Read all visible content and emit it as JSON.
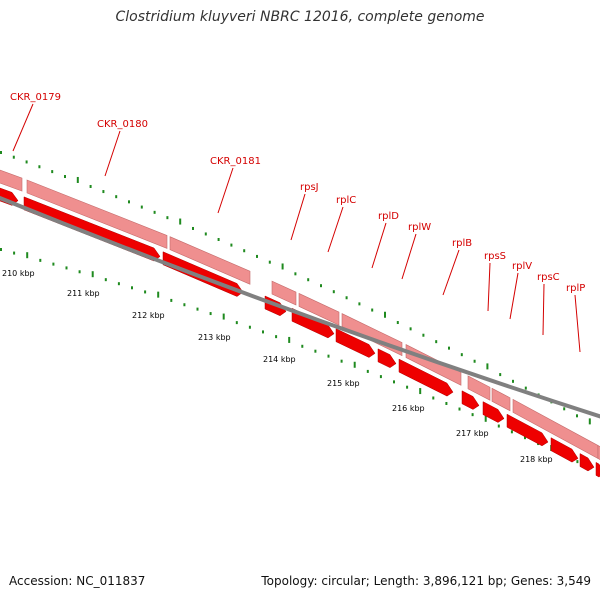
{
  "title": "Clostridium kluyveri NBRC 12016, complete genome",
  "accession": "Accession: NC_011837",
  "summary": "Topology: circular; Length: 3,896,121 bp; Genes: 3,549",
  "colors": {
    "gene_label": "#d40000",
    "cds_outer": "#ef8f8f",
    "cds_inner": "#ee0000",
    "backbone": "#808080",
    "gc_ticks": "#1f8a1f"
  },
  "genes": [
    {
      "name": "CKR_0179"
    },
    {
      "name": "CKR_0180"
    },
    {
      "name": "CKR_0181"
    },
    {
      "name": "rpsJ"
    },
    {
      "name": "rplC"
    },
    {
      "name": "rplD"
    },
    {
      "name": "rplW"
    },
    {
      "name": "rplB"
    },
    {
      "name": "rpsS"
    },
    {
      "name": "rplV"
    },
    {
      "name": "rpsC"
    },
    {
      "name": "rplP"
    }
  ],
  "scale_labels": [
    "210 kbp",
    "211 kbp",
    "212 kbp",
    "213 kbp",
    "214 kbp",
    "215 kbp",
    "216 kbp",
    "217 kbp",
    "218 kbp"
  ]
}
